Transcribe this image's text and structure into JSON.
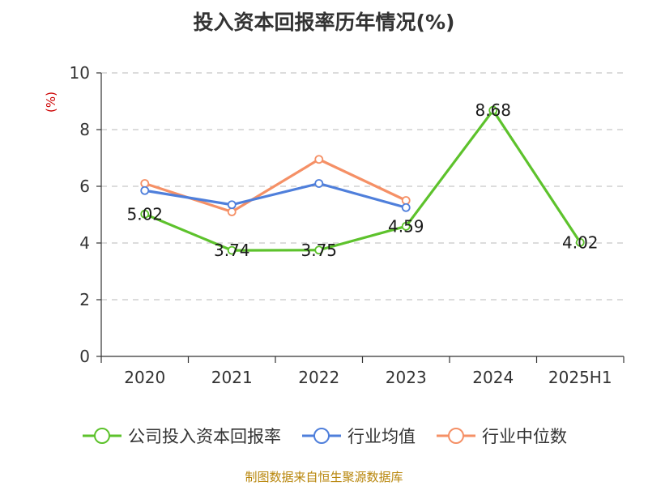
{
  "title": "投入资本回报率历年情况(%)",
  "source": "制图数据来自恒生聚源数据库",
  "colors": {
    "company": "#5dc22c",
    "industry_avg": "#4f7fdb",
    "industry_median": "#f59066",
    "unit": "#cc0000",
    "source": "#b8860b"
  },
  "chart_data": {
    "type": "line",
    "title": "投入资本回报率历年情况(%)",
    "ylabel": "(%)",
    "xlabel": "",
    "categories": [
      "2020",
      "2021",
      "2022",
      "2023",
      "2024",
      "2025H1"
    ],
    "ylim": [
      0,
      10
    ],
    "yticks": [
      0,
      2,
      4,
      6,
      8,
      10
    ],
    "grid": true,
    "legend_position": "bottom",
    "series": [
      {
        "name": "公司投入资本回报率",
        "values": [
          5.02,
          3.74,
          3.75,
          4.59,
          8.68,
          4.02
        ],
        "labels": [
          "5.02",
          "3.74",
          "3.75",
          "4.59",
          "8.68",
          "4.02"
        ]
      },
      {
        "name": "行业均值",
        "values": [
          5.85,
          5.35,
          6.1,
          5.25,
          null,
          null
        ]
      },
      {
        "name": "行业中位数",
        "values": [
          6.1,
          5.1,
          6.95,
          5.5,
          null,
          null
        ]
      }
    ]
  }
}
